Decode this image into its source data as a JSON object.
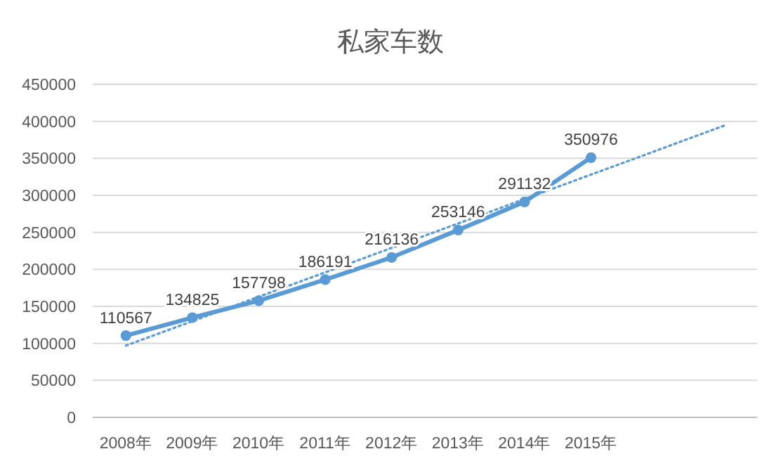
{
  "chart_data": {
    "type": "line",
    "title": "私家车数",
    "categories": [
      "2008年",
      "2009年",
      "2010年",
      "2011年",
      "2012年",
      "2013年",
      "2014年",
      "2015年",
      null,
      null
    ],
    "ylim": [
      0,
      450000
    ],
    "yticks": [
      0,
      50000,
      100000,
      150000,
      200000,
      250000,
      300000,
      350000,
      400000,
      450000
    ],
    "grid": "y",
    "marker": "circle",
    "series": [
      {
        "color": "#5b9bd5",
        "values": [
          110567,
          134825,
          157798,
          186191,
          216136,
          253146,
          291132,
          350976,
          null,
          null
        ],
        "value_labels": [
          "110567",
          "134825",
          "157798",
          "186191",
          "216136",
          "253146",
          "291132",
          "350976",
          null,
          null
        ]
      },
      {
        "type": "line",
        "color": "#5b9bd5",
        "line_style": "dotted",
        "marker": "none",
        "values": [
          97000,
          130000,
          163000,
          196000,
          229000,
          262000,
          295000,
          328000,
          361000,
          394000
        ]
      }
    ]
  }
}
